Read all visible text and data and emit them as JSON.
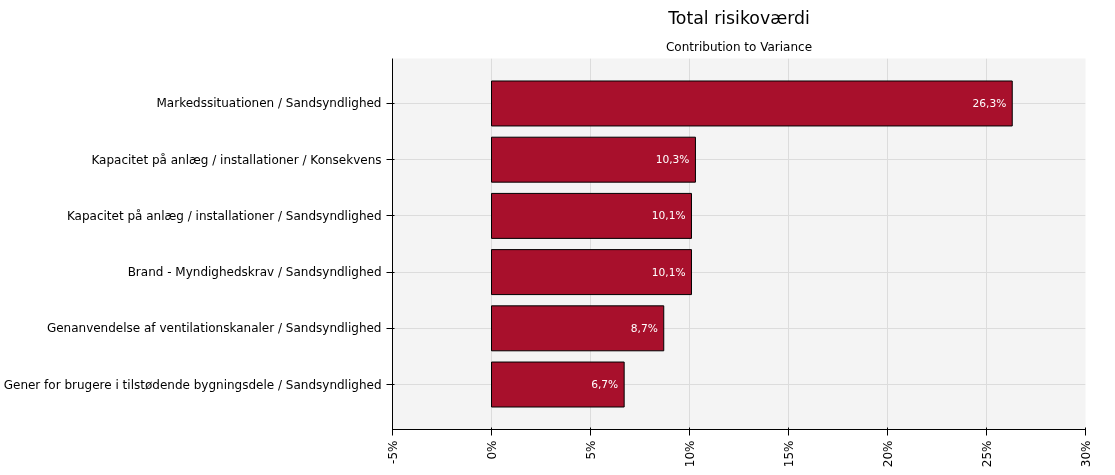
{
  "chart_data": {
    "type": "bar",
    "orientation": "horizontal",
    "title": "Total risikoværdi",
    "subtitle": "Contribution to Variance",
    "categories": [
      "Markedssituationen / Sandsyndlighed",
      "Kapacitet på anlæg / installationer / Konsekvens",
      "Kapacitet på anlæg / installationer / Sandsyndlighed",
      "Brand - Myndighedskrav / Sandsyndlighed",
      "Genanvendelse af ventilationskanaler / Sandsyndlighed",
      "Gener for brugere i tilstødende bygningsdele / Sandsyndlighed"
    ],
    "values": [
      26.3,
      10.3,
      10.1,
      10.1,
      8.7,
      6.7
    ],
    "value_labels": [
      "26,3%",
      "10,3%",
      "10,1%",
      "10,1%",
      "8,7%",
      "6,7%"
    ],
    "color": "#a8102c",
    "xlim": [
      -5,
      30
    ],
    "xticks": [
      {
        "value": -5,
        "label": "-5%"
      },
      {
        "value": 0,
        "label": "0%"
      },
      {
        "value": 5,
        "label": "5%"
      },
      {
        "value": 10,
        "label": "10%"
      },
      {
        "value": 15,
        "label": "15%"
      },
      {
        "value": 20,
        "label": "20%"
      },
      {
        "value": 25,
        "label": "25%"
      },
      {
        "value": 30,
        "label": "30%"
      }
    ],
    "grid": true
  }
}
